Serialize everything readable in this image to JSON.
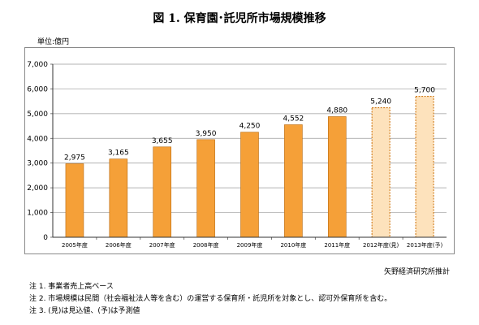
{
  "title": "図 1.  保育園･託児所市場規模推移",
  "unit_label": "単位:億円",
  "source": "矢野経済研究所推計",
  "notes": [
    "注 1.  事業者売上高ベース",
    "注 2.  市場規模は民間（社会福祉法人等を含む）の運営する保育所・託児所を対象とし、認可外保育所を含む。",
    "注 3.  (見)は見込値、(予)は予測値"
  ],
  "chart_data": {
    "type": "bar",
    "categories": [
      "2005年度",
      "2006年度",
      "2007年度",
      "2008年度",
      "2009年度",
      "2010年度",
      "2011年度",
      "2012年度(見)",
      "2013年度(予)"
    ],
    "values": [
      2975,
      3165,
      3655,
      3950,
      4250,
      4552,
      4880,
      5240,
      5700
    ],
    "value_labels": [
      "2,975",
      "3,165",
      "3,655",
      "3,950",
      "4,250",
      "4,552",
      "4,880",
      "5,240",
      "5,700"
    ],
    "estimated": [
      false,
      false,
      false,
      false,
      false,
      false,
      false,
      true,
      true
    ],
    "yticks": [
      0,
      1000,
      2000,
      3000,
      4000,
      5000,
      6000,
      7000
    ],
    "ytick_labels": [
      "0",
      "1,000",
      "2,000",
      "3,000",
      "4,000",
      "5,000",
      "6,000",
      "7,000"
    ],
    "ylim": [
      0,
      7000
    ],
    "grid": true,
    "colors": {
      "bar": "#f5a038",
      "bar_edge": "#b86a10",
      "estimate_fill": "#fde2bc",
      "estimate_edge": "#d07a18"
    }
  }
}
